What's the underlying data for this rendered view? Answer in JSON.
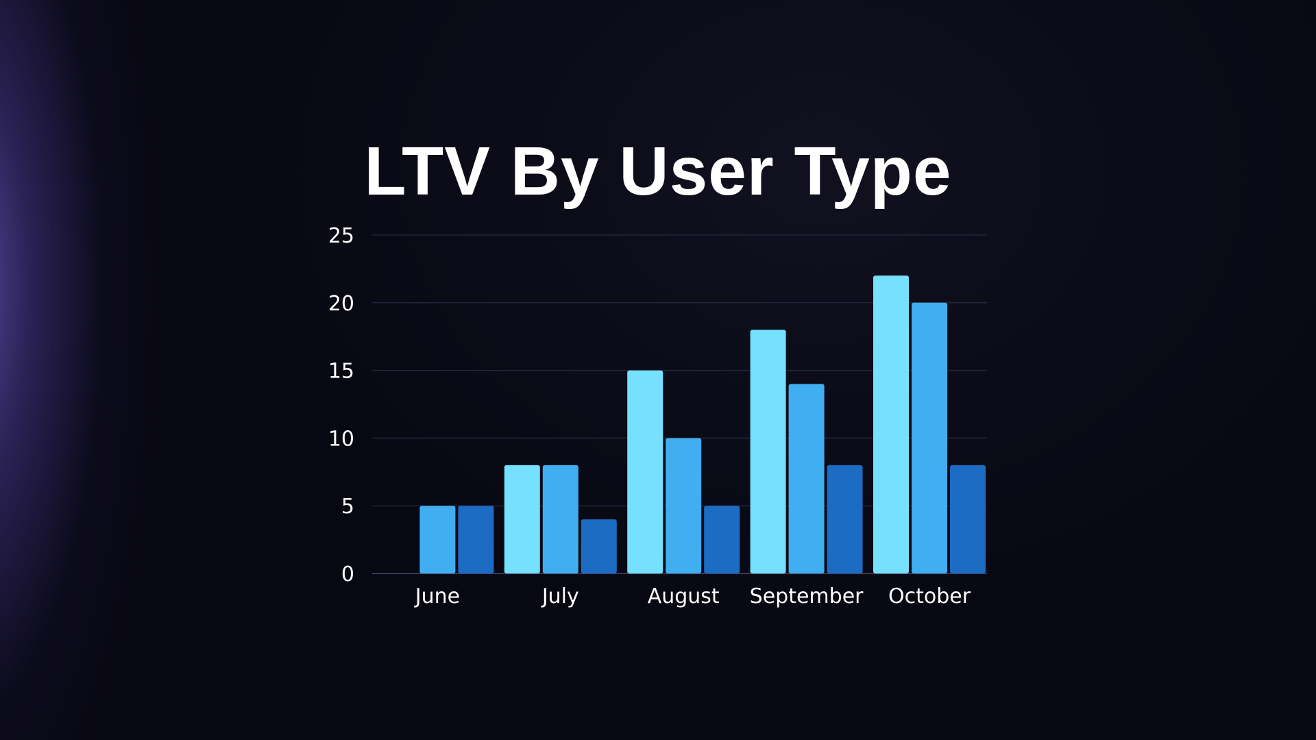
{
  "chart_data": {
    "type": "bar",
    "title": "LTV By User Type",
    "categories": [
      "June",
      "July",
      "August",
      "September",
      "October"
    ],
    "series": [
      {
        "values": [
          0,
          8,
          15,
          18,
          22
        ],
        "color": "#76E0FF"
      },
      {
        "values": [
          5,
          8,
          10,
          14,
          20
        ],
        "color": "#40AEF0"
      },
      {
        "values": [
          5,
          4,
          5,
          8,
          8
        ],
        "color": "#1C6CC4"
      }
    ],
    "yticks": [
      "0",
      "5",
      "10",
      "15",
      "20",
      "25"
    ],
    "ylim": [
      0,
      25
    ],
    "grid": true,
    "gridColor": "#23233a",
    "axisColor": "#3a3a5a"
  }
}
